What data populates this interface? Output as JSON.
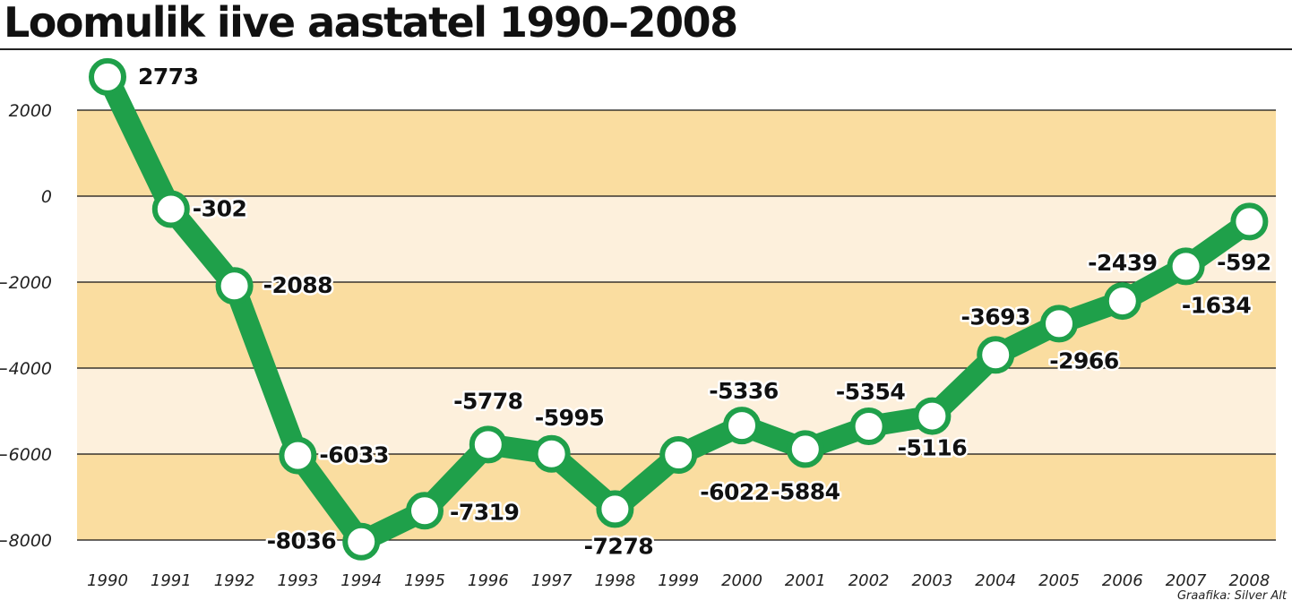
{
  "header": {
    "title": "Loomulik iive aastatel 1990–2008"
  },
  "credit": "Graafika: Silver Alt",
  "colors": {
    "band_dark": "#FADDA0",
    "band_light": "#FDF0DC",
    "line": "#1FA04A",
    "marker_fill": "#FFFFFF"
  },
  "chart_data": {
    "type": "line",
    "title": "Loomulik iive aastatel 1990–2008",
    "xlabel": "",
    "ylabel": "",
    "ylim": [
      -8000,
      2000
    ],
    "yticks": [
      2000,
      0,
      -2000,
      -4000,
      -6000,
      -8000
    ],
    "ytick_labels": [
      "2000",
      "0",
      "−2000",
      "−4000",
      "−6000",
      "−8000"
    ],
    "grid": true,
    "legend": "none",
    "x": [
      "1990",
      "1991",
      "1992",
      "1993",
      "1994",
      "1995",
      "1996",
      "1997",
      "1998",
      "1999",
      "2000",
      "2001",
      "2002",
      "2003",
      "2004",
      "2005",
      "2006",
      "2007",
      "2008"
    ],
    "values": [
      2773,
      -302,
      -2088,
      -6033,
      -8036,
      -7319,
      -5778,
      -5995,
      -7278,
      -6022,
      -5336,
      -5884,
      -5354,
      -5116,
      -3693,
      -2966,
      -2439,
      -1634,
      -592
    ],
    "value_labels": [
      "2773",
      "-302",
      "-2088",
      "-6033",
      "-8036",
      "-7319",
      "-5778",
      "-5995",
      "-7278",
      "-6022",
      "-5336",
      "-5884",
      "-5354",
      "-5116",
      "-3693",
      "-2966",
      "-2439",
      "-1634",
      "-592"
    ]
  }
}
